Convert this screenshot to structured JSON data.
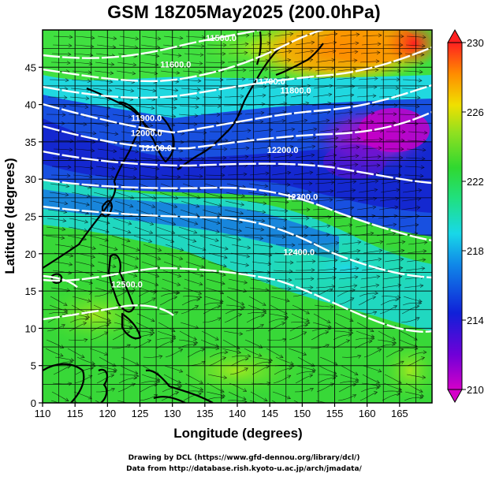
{
  "title": "GSM 18Z05May2025 (200.0hPa)",
  "axes": {
    "xlabel": "Longitude (degrees)",
    "ylabel": "Latitude  (degrees)",
    "xticks": [
      "110",
      "115",
      "120",
      "125",
      "130",
      "135",
      "140",
      "145",
      "150",
      "155",
      "160",
      "165"
    ],
    "yticks": [
      "0",
      "5",
      "10",
      "15",
      "20",
      "25",
      "30",
      "35",
      "40",
      "45"
    ]
  },
  "colorbar": {
    "ticks": [
      "210",
      "214",
      "218",
      "222",
      "226",
      "230"
    ],
    "min": 210,
    "max": 230
  },
  "contour_labels": [
    {
      "text": "11500.0",
      "lon": 137.5,
      "lat": 48.5
    },
    {
      "text": "11600.0",
      "lon": 130.5,
      "lat": 45.0
    },
    {
      "text": "11700.0",
      "lon": 145.0,
      "lat": 42.7
    },
    {
      "text": "11800.0",
      "lon": 149.0,
      "lat": 41.5
    },
    {
      "text": "11900.0",
      "lon": 126.0,
      "lat": 37.8
    },
    {
      "text": "12000.0",
      "lon": 126.0,
      "lat": 35.8
    },
    {
      "text": "12100.0",
      "lon": 127.5,
      "lat": 33.8
    },
    {
      "text": "12200.0",
      "lon": 147.0,
      "lat": 33.5
    },
    {
      "text": "12300.0",
      "lon": 150.0,
      "lat": 27.2
    },
    {
      "text": "12400.0",
      "lon": 149.5,
      "lat": 19.8
    },
    {
      "text": "12500.0",
      "lon": 123.0,
      "lat": 15.5
    }
  ],
  "credits": {
    "line1": "Drawing by DCL (https://www.gfd-dennou.org/library/dcl/)",
    "line2": "Data from http://database.rish.kyoto-u.ac.jp/arch/jmadata/"
  },
  "colors": {
    "purple": "#c800c8",
    "blue": "#1020d0",
    "cyan": "#20e0e8",
    "green": "#30e030",
    "yellow": "#f0f000",
    "orange": "#ff8000",
    "red": "#ff2020"
  }
}
